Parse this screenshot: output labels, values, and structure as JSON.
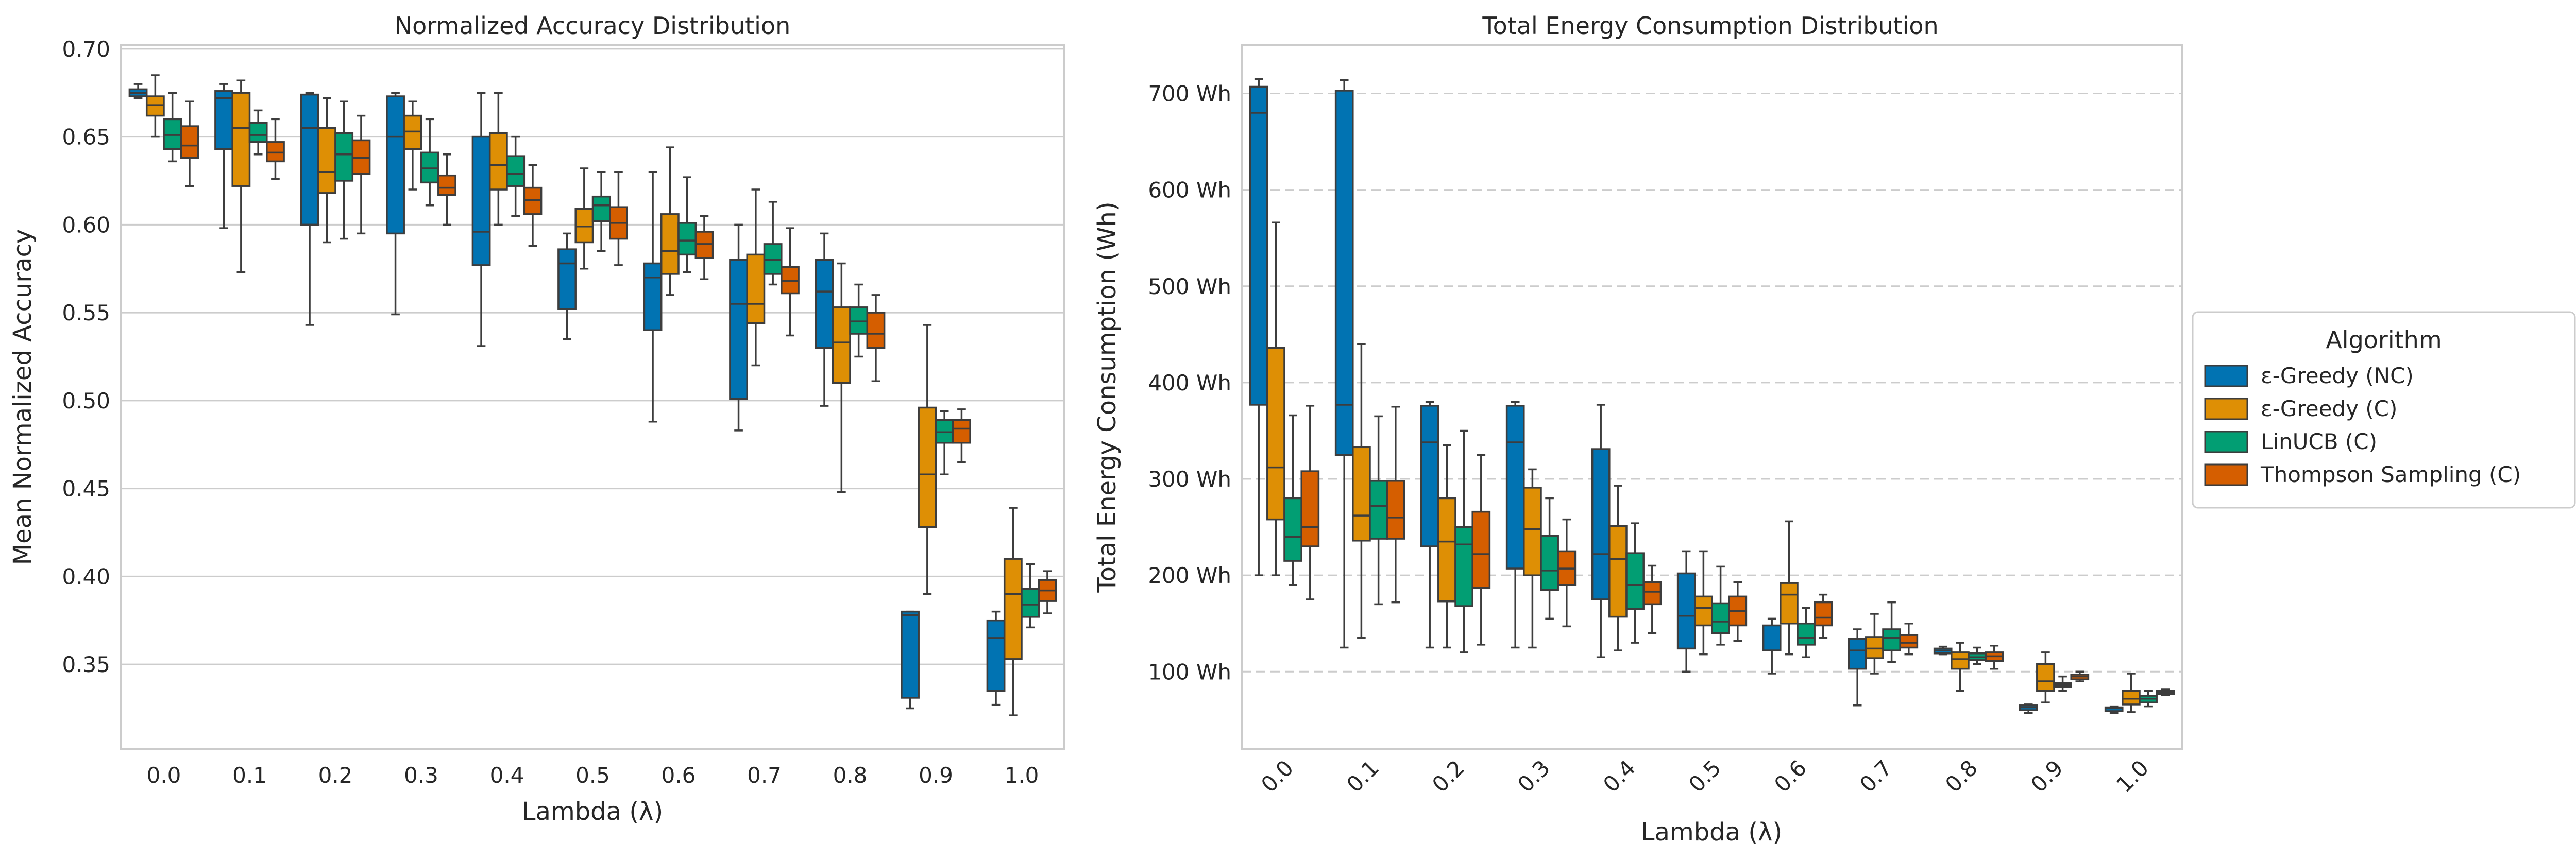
{
  "legend": {
    "title": "Algorithm",
    "entries": [
      "ε-Greedy (NC)",
      "ε-Greedy (C)",
      "LinUCB (C)",
      "Thompson Sampling (C)"
    ]
  },
  "colors": {
    "eps_nc": "#0173b2",
    "eps_c": "#de8f05",
    "linucb": "#029e73",
    "thompson": "#d55e00",
    "grid": "#cccccc",
    "spine": "#cccccc",
    "edge": "#3d3d3d"
  },
  "chart_data": [
    {
      "type": "box",
      "title": "Normalized Accuracy Distribution",
      "xlabel": "Lambda (λ)",
      "ylabel": "Mean Normalized Accuracy",
      "categories": [
        "0.0",
        "0.1",
        "0.2",
        "0.3",
        "0.4",
        "0.5",
        "0.6",
        "0.7",
        "0.8",
        "0.9",
        "1.0"
      ],
      "ylim": [
        0.302,
        0.702
      ],
      "yticks": [
        "0.35",
        "0.40",
        "0.45",
        "0.50",
        "0.55",
        "0.60",
        "0.65",
        "0.70"
      ],
      "grid": "horizontal solid",
      "series": [
        {
          "name": "ε-Greedy (NC)",
          "boxes": [
            [
              0.672,
              0.673,
              0.675,
              0.677,
              0.68
            ],
            [
              0.598,
              0.643,
              0.672,
              0.676,
              0.68
            ],
            [
              0.543,
              0.6,
              0.655,
              0.674,
              0.675
            ],
            [
              0.549,
              0.595,
              0.65,
              0.673,
              0.675
            ],
            [
              0.531,
              0.577,
              0.596,
              0.65,
              0.675
            ],
            [
              0.535,
              0.552,
              0.578,
              0.586,
              0.595
            ],
            [
              0.488,
              0.54,
              0.57,
              0.578,
              0.63
            ],
            [
              0.483,
              0.501,
              0.555,
              0.58,
              0.6
            ],
            [
              0.497,
              0.53,
              0.562,
              0.58,
              0.595
            ],
            [
              0.325,
              0.331,
              0.378,
              0.38,
              0.38
            ],
            [
              0.327,
              0.335,
              0.365,
              0.375,
              0.38
            ]
          ]
        },
        {
          "name": "ε-Greedy (C)",
          "boxes": [
            [
              0.65,
              0.662,
              0.668,
              0.673,
              0.685
            ],
            [
              0.573,
              0.622,
              0.655,
              0.675,
              0.682
            ],
            [
              0.59,
              0.618,
              0.63,
              0.655,
              0.672
            ],
            [
              0.62,
              0.643,
              0.653,
              0.662,
              0.67
            ],
            [
              0.6,
              0.62,
              0.634,
              0.652,
              0.675
            ],
            [
              0.575,
              0.59,
              0.599,
              0.609,
              0.632
            ],
            [
              0.56,
              0.572,
              0.585,
              0.606,
              0.644
            ],
            [
              0.52,
              0.544,
              0.555,
              0.583,
              0.62
            ],
            [
              0.448,
              0.51,
              0.533,
              0.553,
              0.578
            ],
            [
              0.39,
              0.428,
              0.458,
              0.496,
              0.543
            ],
            [
              0.321,
              0.353,
              0.39,
              0.41,
              0.439
            ]
          ]
        },
        {
          "name": "LinUCB (C)",
          "boxes": [
            [
              0.636,
              0.643,
              0.651,
              0.66,
              0.675
            ],
            [
              0.64,
              0.647,
              0.651,
              0.658,
              0.665
            ],
            [
              0.592,
              0.625,
              0.64,
              0.652,
              0.67
            ],
            [
              0.611,
              0.624,
              0.632,
              0.641,
              0.66
            ],
            [
              0.605,
              0.622,
              0.629,
              0.639,
              0.65
            ],
            [
              0.585,
              0.602,
              0.611,
              0.616,
              0.63
            ],
            [
              0.573,
              0.583,
              0.591,
              0.601,
              0.627
            ],
            [
              0.566,
              0.572,
              0.58,
              0.589,
              0.613
            ],
            [
              0.525,
              0.538,
              0.545,
              0.553,
              0.566
            ],
            [
              0.458,
              0.476,
              0.482,
              0.489,
              0.494
            ],
            [
              0.371,
              0.377,
              0.384,
              0.393,
              0.407
            ]
          ]
        },
        {
          "name": "Thompson Sampling (C)",
          "boxes": [
            [
              0.622,
              0.638,
              0.645,
              0.656,
              0.67
            ],
            [
              0.626,
              0.636,
              0.641,
              0.647,
              0.66
            ],
            [
              0.595,
              0.629,
              0.638,
              0.648,
              0.662
            ],
            [
              0.6,
              0.617,
              0.621,
              0.628,
              0.64
            ],
            [
              0.588,
              0.606,
              0.614,
              0.621,
              0.634
            ],
            [
              0.577,
              0.592,
              0.601,
              0.61,
              0.63
            ],
            [
              0.569,
              0.581,
              0.589,
              0.596,
              0.605
            ],
            [
              0.537,
              0.561,
              0.568,
              0.576,
              0.598
            ],
            [
              0.511,
              0.53,
              0.538,
              0.55,
              0.56
            ],
            [
              0.465,
              0.476,
              0.484,
              0.489,
              0.495
            ],
            [
              0.379,
              0.386,
              0.392,
              0.398,
              0.403
            ]
          ]
        }
      ]
    },
    {
      "type": "box",
      "title": "Total Energy Consumption Distribution",
      "xlabel": "Lambda (λ)",
      "ylabel": "Total Energy Consumption (Wh)",
      "categories": [
        "0.0",
        "0.1",
        "0.2",
        "0.3",
        "0.4",
        "0.5",
        "0.6",
        "0.7",
        "0.8",
        "0.9",
        "1.0"
      ],
      "ylim": [
        20,
        750
      ],
      "yticks": [
        "100 Wh",
        "200 Wh",
        "300 Wh",
        "400 Wh",
        "500 Wh",
        "600 Wh",
        "700 Wh"
      ],
      "grid": "horizontal dashed",
      "series": [
        {
          "name": "ε-Greedy (NC)",
          "boxes": [
            [
              200,
              377,
              680,
              707,
              715
            ],
            [
              125,
              325,
              377,
              703,
              714
            ],
            [
              125,
              230,
              338,
              376,
              380
            ],
            [
              125,
              207,
              338,
              376,
              380
            ],
            [
              115,
              175,
              222,
              331,
              377
            ],
            [
              100,
              124,
              158,
              202,
              225
            ],
            [
              98,
              122,
              122,
              148,
              155
            ],
            [
              65,
              103,
              122,
              134,
              144
            ],
            [
              118,
              119,
              122,
              124,
              126
            ],
            [
              57,
              60,
              63,
              65,
              66
            ],
            [
              57,
              59,
              62,
              63,
              64
            ]
          ]
        },
        {
          "name": "ε-Greedy (C)",
          "boxes": [
            [
              200,
              258,
              312,
              436,
              566
            ],
            [
              135,
              236,
              262,
              333,
              440
            ],
            [
              125,
              173,
              235,
              280,
              335
            ],
            [
              125,
              200,
              248,
              291,
              310
            ],
            [
              122,
              157,
              217,
              251,
              293
            ],
            [
              118,
              148,
              166,
              178,
              225
            ],
            [
              118,
              150,
              180,
              192,
              256
            ],
            [
              98,
              114,
              124,
              136,
              160
            ],
            [
              80,
              103,
              113,
              120,
              130
            ],
            [
              68,
              80,
              90,
              108,
              120
            ],
            [
              58,
              66,
              72,
              80,
              98
            ]
          ]
        },
        {
          "name": "LinUCB (C)",
          "boxes": [
            [
              190,
              215,
              240,
              280,
              366
            ],
            [
              170,
              238,
              272,
              298,
              365
            ],
            [
              120,
              168,
              232,
              250,
              350
            ],
            [
              155,
              185,
              205,
              241,
              280
            ],
            [
              130,
              165,
              190,
              223,
              254
            ],
            [
              128,
              140,
              152,
              171,
              209
            ],
            [
              115,
              128,
              135,
              150,
              166
            ],
            [
              110,
              122,
              135,
              144,
              172
            ],
            [
              108,
              112,
              115,
              119,
              125
            ],
            [
              80,
              84,
              86,
              88,
              95
            ],
            [
              64,
              68,
              72,
              75,
              80
            ]
          ]
        },
        {
          "name": "Thompson Sampling (C)",
          "boxes": [
            [
              175,
              230,
              250,
              308,
              376
            ],
            [
              172,
              238,
              260,
              298,
              375
            ],
            [
              128,
              187,
              222,
              266,
              325
            ],
            [
              147,
              190,
              207,
              225,
              258
            ],
            [
              140,
              170,
              183,
              193,
              210
            ],
            [
              132,
              148,
              163,
              178,
              193
            ],
            [
              135,
              148,
              156,
              172,
              180
            ],
            [
              118,
              125,
              130,
              138,
              150
            ],
            [
              103,
              111,
              116,
              120,
              127
            ],
            [
              90,
              92,
              95,
              97,
              100
            ],
            [
              76,
              77,
              79,
              80,
              82
            ]
          ]
        }
      ]
    }
  ]
}
